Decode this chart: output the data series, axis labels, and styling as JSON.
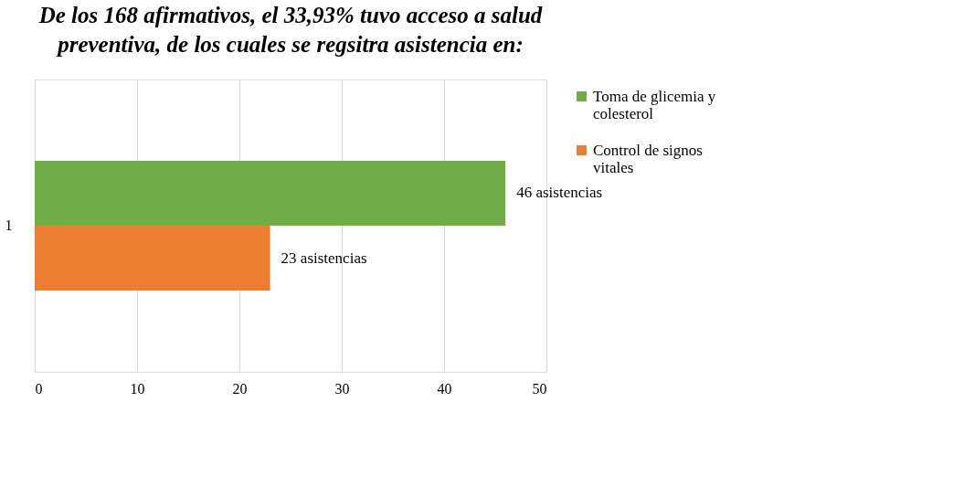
{
  "chart_data": {
    "type": "bar",
    "orientation": "horizontal",
    "title": "De los 168 afirmativos, el 33,93% tuvo acceso a salud preventiva, de los cuales se regsitra asistencia en:",
    "categories": [
      "1"
    ],
    "series": [
      {
        "name": "Toma de glicemia y colesterol",
        "color": "#70ad47",
        "values": [
          46
        ],
        "value_labels": [
          "46 asistencias"
        ]
      },
      {
        "name": "Control de signos vitales",
        "color": "#ed7d31",
        "values": [
          23
        ],
        "value_labels": [
          "23 asistencias"
        ]
      }
    ],
    "xlim": [
      0,
      50
    ],
    "xticks": [
      0,
      10,
      20,
      30,
      40,
      50
    ],
    "grid": "x",
    "legend": "right"
  }
}
